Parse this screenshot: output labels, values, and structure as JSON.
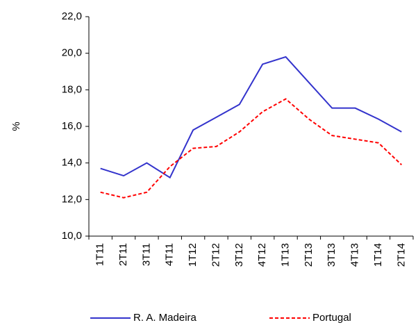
{
  "chart_data": {
    "type": "line",
    "y_label": "%",
    "categories": [
      "1T11",
      "2T11",
      "3T11",
      "4T11",
      "1T12",
      "2T12",
      "3T12",
      "4T12",
      "1T13",
      "2T13",
      "3T13",
      "4T13",
      "1T14",
      "2T14"
    ],
    "series": [
      {
        "name": "R. A. Madeira",
        "color": "#3333cc",
        "dash": false,
        "values": [
          13.7,
          13.3,
          14.0,
          13.2,
          15.8,
          16.5,
          17.2,
          19.4,
          19.8,
          18.4,
          17.0,
          17.0,
          16.4,
          15.7
        ]
      },
      {
        "name": "Portugal",
        "color": "#ff0000",
        "dash": true,
        "values": [
          12.4,
          12.1,
          12.4,
          13.8,
          14.8,
          14.9,
          15.7,
          16.8,
          17.5,
          16.4,
          15.5,
          15.3,
          15.1,
          13.9
        ]
      }
    ],
    "ylim": [
      10,
      22
    ],
    "yticks": [
      {
        "value": 10,
        "label": "10,0"
      },
      {
        "value": 12,
        "label": "12,0"
      },
      {
        "value": 14,
        "label": "14,0"
      },
      {
        "value": 16,
        "label": "16,0"
      },
      {
        "value": 18,
        "label": "18,0"
      },
      {
        "value": 20,
        "label": "20,0"
      },
      {
        "value": 22,
        "label": "22,0"
      }
    ],
    "grid": false
  }
}
